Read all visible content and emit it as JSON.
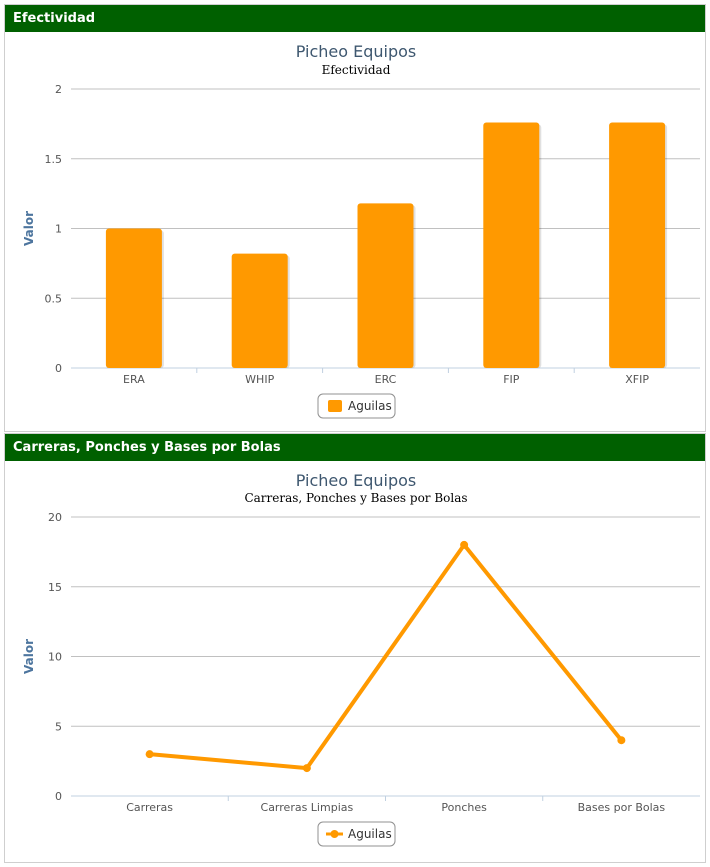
{
  "panels": {
    "p1": {
      "header": "Efectividad"
    },
    "p2": {
      "header": "Carreras, Ponches y Bases por Bolas"
    }
  },
  "chart_data": [
    {
      "type": "bar",
      "title": "Picheo Equipos",
      "subtitle": "Efectividad",
      "ylabel": "Valor",
      "xlabel": "",
      "ylim": [
        0,
        2
      ],
      "yticks": [
        "0",
        "0.5",
        "1",
        "1.5",
        "2"
      ],
      "categories": [
        "ERA",
        "WHIP",
        "ERC",
        "FIP",
        "XFIP"
      ],
      "series": [
        {
          "name": "Aguilas",
          "values": [
            1.0,
            0.82,
            1.18,
            1.76,
            1.76
          ],
          "color": "#ff9900"
        }
      ],
      "grid": true,
      "legend": "bottom-center"
    },
    {
      "type": "line",
      "title": "Picheo Equipos",
      "subtitle": "Carreras, Ponches y Bases por Bolas",
      "ylabel": "Valor",
      "xlabel": "",
      "ylim": [
        0,
        20
      ],
      "yticks": [
        "0",
        "5",
        "10",
        "15",
        "20"
      ],
      "categories": [
        "Carreras",
        "Carreras Limpias",
        "Ponches",
        "Bases por Bolas"
      ],
      "series": [
        {
          "name": "Aguilas",
          "values": [
            3,
            2,
            18,
            4
          ],
          "color": "#ff9900"
        }
      ],
      "grid": true,
      "legend": "bottom-center"
    }
  ]
}
